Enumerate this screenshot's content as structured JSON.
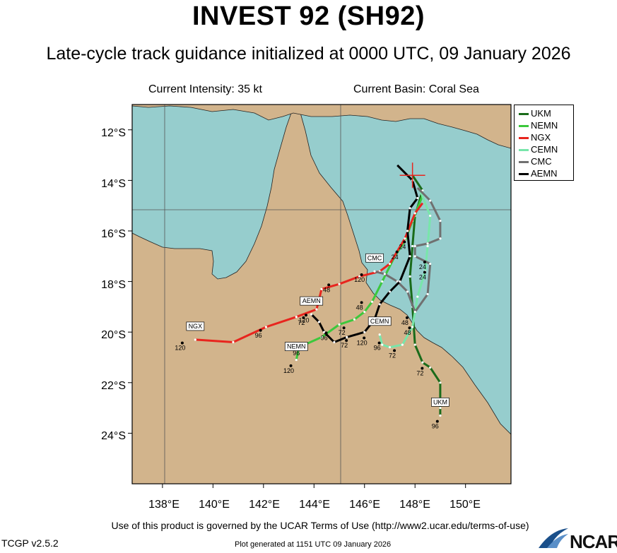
{
  "header": {
    "title": "INVEST 92 (SH92)",
    "subtitle": "Late-cycle track guidance initialized at 0000 UTC, 09 January 2026",
    "current_intensity": "Current Intensity: 35 kt",
    "current_basin": "Current Basin: Coral Sea"
  },
  "axes": {
    "lat_labels": [
      "12°S",
      "14°S",
      "16°S",
      "18°S",
      "20°S",
      "22°S",
      "24°S"
    ],
    "lon_labels": [
      "138°E",
      "140°E",
      "142°E",
      "144°E",
      "146°E",
      "148°E",
      "150°E"
    ],
    "lat_values": [
      -12,
      -14,
      -16,
      -18,
      -20,
      -22,
      -24
    ],
    "lon_values": [
      138,
      140,
      142,
      144,
      146,
      148,
      150
    ],
    "lat_range": [
      -26,
      -11
    ],
    "lon_range": [
      136.8,
      151.8
    ]
  },
  "colors": {
    "ocean": "#96cdcd",
    "land": "#d2b48c",
    "UKM": "#1a6b1a",
    "NEMN": "#3cc83c",
    "NGX": "#e8251e",
    "CEMN": "#78e6aa",
    "CMC": "#707070",
    "AEMN": "#000000"
  },
  "legend": [
    "UKM",
    "NEMN",
    "NGX",
    "CEMN",
    "CMC",
    "AEMN"
  ],
  "current_position": {
    "name": "current-position",
    "lat": -13.8,
    "lon": 147.9
  },
  "chart_data": {
    "type": "map",
    "tracks": [
      {
        "name": "UKM",
        "points": [
          [
            147.9,
            -13.8
          ],
          [
            148.3,
            -14.4
          ],
          [
            148.0,
            -15.4
          ],
          [
            147.9,
            -16.6
          ],
          [
            147.8,
            -17.8
          ],
          [
            147.9,
            -19.0
          ],
          [
            148.0,
            -20.5
          ],
          [
            148.3,
            -21.2
          ],
          [
            148.6,
            -21.4
          ],
          [
            149.0,
            -22.0
          ],
          [
            149.0,
            -23.0
          ],
          [
            149.0,
            -23.3
          ]
        ],
        "labels": [
          {
            "text": "72",
            "lon": 148.2,
            "lat": -21.6
          },
          {
            "text": "96",
            "lon": 148.8,
            "lat": -23.7
          }
        ],
        "end_label": "UKM"
      },
      {
        "name": "NEMN",
        "points": [
          [
            148.3,
            -14.6
          ],
          [
            147.9,
            -15.6
          ],
          [
            147.6,
            -16.4
          ],
          [
            147.2,
            -17.0
          ],
          [
            146.7,
            -18.0
          ],
          [
            146.3,
            -18.8
          ],
          [
            146.0,
            -19.2
          ],
          [
            145.6,
            -19.5
          ],
          [
            145.0,
            -19.7
          ],
          [
            144.3,
            -20.2
          ],
          [
            143.4,
            -20.6
          ],
          [
            143.3,
            -21.1
          ]
        ],
        "labels": [
          {
            "text": "24",
            "lon": 147.2,
            "lat": -17.0
          },
          {
            "text": "48",
            "lon": 145.8,
            "lat": -19.0
          },
          {
            "text": "72",
            "lon": 145.1,
            "lat": -20.0
          },
          {
            "text": "96",
            "lon": 143.3,
            "lat": -20.8
          },
          {
            "text": "120",
            "lon": 143.0,
            "lat": -21.5
          }
        ],
        "end_label": "NEMN"
      },
      {
        "name": "NGX",
        "points": [
          [
            148.3,
            -14.9
          ],
          [
            148.0,
            -15.3
          ],
          [
            147.6,
            -16.3
          ],
          [
            147.0,
            -17.3
          ],
          [
            146.6,
            -17.6
          ],
          [
            145.8,
            -17.8
          ],
          [
            145.0,
            -18.1
          ],
          [
            144.3,
            -18.3
          ],
          [
            144.1,
            -19.1
          ],
          [
            143.3,
            -19.4
          ],
          [
            142.1,
            -19.8
          ],
          [
            140.8,
            -20.4
          ],
          [
            139.3,
            -20.3
          ]
        ],
        "labels": [
          {
            "text": "48",
            "lon": 144.5,
            "lat": -18.3
          },
          {
            "text": "72",
            "lon": 143.5,
            "lat": -19.6
          },
          {
            "text": "96",
            "lon": 141.8,
            "lat": -20.1
          },
          {
            "text": "120",
            "lon": 138.7,
            "lat": -20.6
          }
        ],
        "end_label": "NGX"
      },
      {
        "name": "CEMN",
        "points": [
          [
            148.2,
            -14.4
          ],
          [
            148.6,
            -15.4
          ],
          [
            148.5,
            -16.6
          ],
          [
            148.4,
            -17.6
          ],
          [
            148.1,
            -18.6
          ],
          [
            147.9,
            -19.8
          ],
          [
            147.5,
            -20.5
          ],
          [
            147.0,
            -20.6
          ],
          [
            146.7,
            -20.5
          ],
          [
            146.6,
            -20.1
          ]
        ],
        "labels": [
          {
            "text": "24",
            "lon": 148.3,
            "lat": -17.8
          },
          {
            "text": "48",
            "lon": 147.7,
            "lat": -20.0
          },
          {
            "text": "72",
            "lon": 147.1,
            "lat": -20.9
          },
          {
            "text": "96",
            "lon": 146.5,
            "lat": -20.6
          }
        ],
        "end_label": "CEMN"
      },
      {
        "name": "CMC",
        "points": [
          [
            148.1,
            -14.3
          ],
          [
            148.6,
            -14.8
          ],
          [
            149.0,
            -15.6
          ],
          [
            149.0,
            -16.3
          ],
          [
            148.5,
            -16.5
          ],
          [
            148.0,
            -16.6
          ],
          [
            148.0,
            -17.0
          ],
          [
            148.6,
            -17.3
          ],
          [
            148.5,
            -18.5
          ],
          [
            148.0,
            -19.2
          ],
          [
            147.7,
            -18.4
          ],
          [
            147.3,
            -18.0
          ],
          [
            146.8,
            -17.7
          ],
          [
            146.4,
            -17.6
          ]
        ],
        "labels": [
          {
            "text": "24",
            "lon": 148.3,
            "lat": -17.4
          },
          {
            "text": "48",
            "lon": 147.6,
            "lat": -19.6
          },
          {
            "text": "120",
            "lon": 145.8,
            "lat": -17.9
          }
        ],
        "end_label": "CMC"
      },
      {
        "name": "AEMN",
        "points": [
          [
            147.3,
            -13.4
          ],
          [
            147.9,
            -14.0
          ],
          [
            148.1,
            -14.7
          ],
          [
            147.8,
            -15.1
          ],
          [
            147.7,
            -16.0
          ],
          [
            147.8,
            -17.0
          ],
          [
            147.4,
            -18.0
          ],
          [
            147.0,
            -18.4
          ],
          [
            146.6,
            -18.9
          ],
          [
            146.4,
            -19.5
          ],
          [
            146.0,
            -20.0
          ],
          [
            145.3,
            -20.2
          ],
          [
            144.8,
            -20.4
          ],
          [
            144.4,
            -20.0
          ],
          [
            144.2,
            -19.6
          ],
          [
            143.9,
            -19.3
          ]
        ],
        "labels": [
          {
            "text": "24",
            "lon": 147.5,
            "lat": -16.6
          },
          {
            "text": "72",
            "lon": 145.2,
            "lat": -20.5
          },
          {
            "text": "96",
            "lon": 144.4,
            "lat": -20.2
          },
          {
            "text": "120",
            "lon": 143.6,
            "lat": -19.5
          },
          {
            "text": "120",
            "lon": 145.9,
            "lat": -20.4
          }
        ],
        "end_label": "AEMN"
      }
    ]
  },
  "footer": {
    "terms": "Use of this product is governed by the UCAR Terms of Use (http://www2.ucar.edu/terms-of-use)",
    "version": "TCGP v2.5.2",
    "generated": "Plot generated at 1151 UTC   09 January 2026",
    "logo": "NCAR"
  }
}
